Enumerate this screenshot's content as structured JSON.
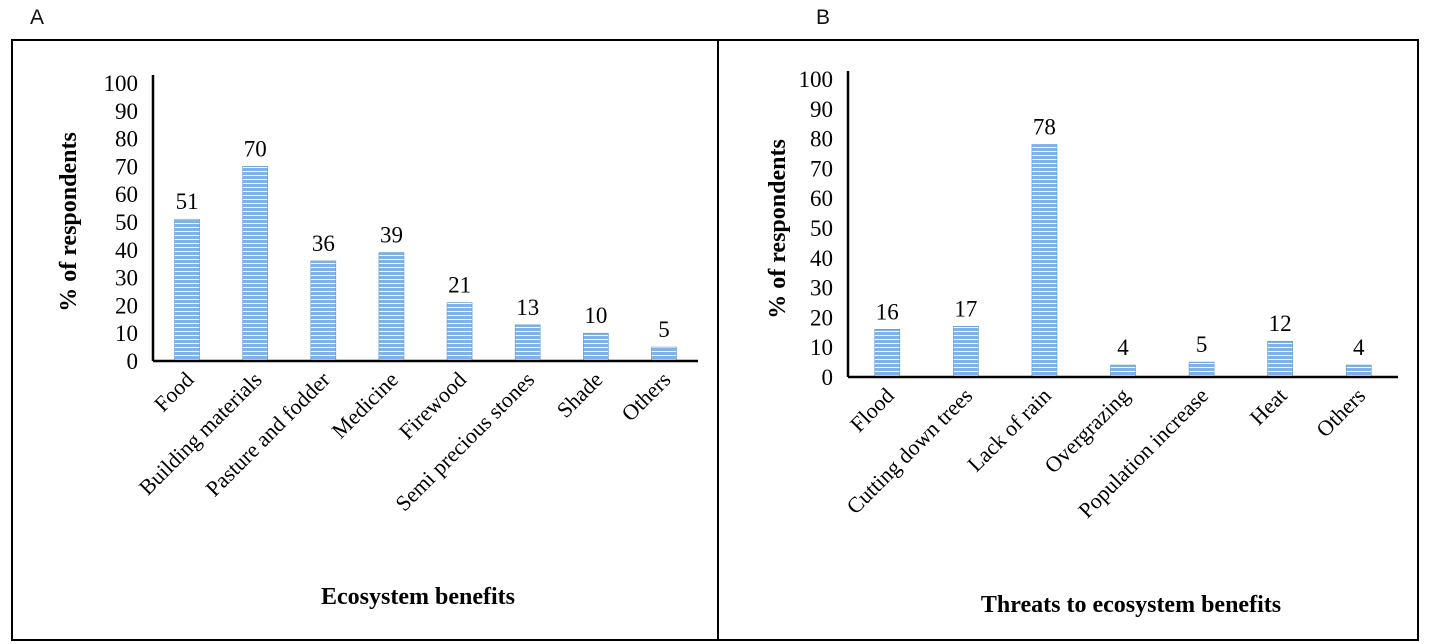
{
  "panels": [
    {
      "letter": "A"
    },
    {
      "letter": "B"
    }
  ],
  "bar_style": {
    "fill": "#7fb3e6",
    "stripe": "#ffffff",
    "outline": "#5b95d0"
  },
  "chart_data": [
    {
      "type": "bar",
      "title": "",
      "xlabel": "Ecosystem benefits",
      "ylabel": "% of respondents",
      "categories": [
        "Food",
        "Building materials",
        "Pasture and fodder",
        "Medicine",
        "Firewood",
        "Semi precious stones",
        "Shade",
        "Others"
      ],
      "values": [
        51,
        70,
        36,
        39,
        21,
        13,
        10,
        5
      ],
      "ylim": [
        0,
        100
      ],
      "yticks": [
        0,
        10,
        20,
        30,
        40,
        50,
        60,
        70,
        80,
        90,
        100
      ],
      "data_labels": true,
      "grid": false,
      "legend": "none"
    },
    {
      "type": "bar",
      "title": "",
      "xlabel": "Threats to ecosystem benefits",
      "ylabel": "% of respondents",
      "categories": [
        "Flood",
        "Cutting down trees",
        "Lack of rain",
        "Overgrazing",
        "Population increase",
        "Heat",
        "Others"
      ],
      "values": [
        16,
        17,
        78,
        4,
        5,
        12,
        4
      ],
      "ylim": [
        0,
        100
      ],
      "yticks": [
        0,
        10,
        20,
        30,
        40,
        50,
        60,
        70,
        80,
        90,
        100
      ],
      "data_labels": true,
      "grid": false,
      "legend": "none"
    }
  ]
}
